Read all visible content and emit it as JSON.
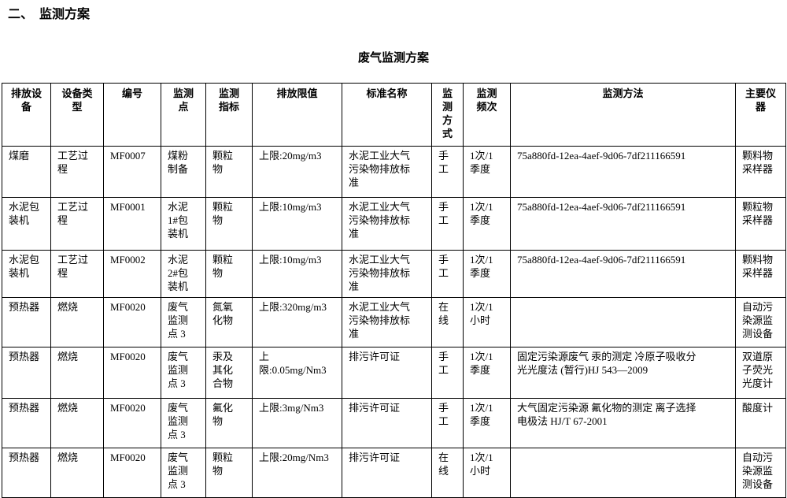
{
  "page": {
    "section_title": "二、　监测方案",
    "table_title": "废气监测方案"
  },
  "table": {
    "headers": [
      "排放设\n备",
      "设备类\n型",
      "编号",
      "监测\n点",
      "监测\n指标",
      "排放限值",
      "标准名称",
      "监\n测\n方\n式",
      "监测\n频次",
      "监测方法",
      "主要仪\n器"
    ],
    "rows": [
      [
        "煤磨",
        "工艺过\n程",
        "MF0007",
        "煤粉\n制备",
        "颗粒\n物",
        "上限:20mg/m3",
        "水泥工业大气\n污染物排放标\n准",
        "手\n工",
        "1次/1\n季度",
        "75a880fd-12ea-4aef-9d06-7df211166591",
        "颗料物\n采样器"
      ],
      [
        "水泥包\n装机",
        "工艺过\n程",
        "MF0001",
        "水泥\n1#包\n装机",
        "颗粒\n物",
        "上限:10mg/m3",
        "水泥工业大气\n污染物排放标\n准",
        "手\n工",
        "1次/1\n季度",
        "75a880fd-12ea-4aef-9d06-7df211166591",
        "颗粒物\n采样器"
      ],
      [
        "水泥包\n装机",
        "工艺过\n程",
        "MF0002",
        "水泥\n2#包\n装机",
        "颗粒\n物",
        "上限:10mg/m3",
        "水泥工业大气\n污染物排放标\n准",
        "手\n工",
        "1次/1\n季度",
        "75a880fd-12ea-4aef-9d06-7df211166591",
        "颗料物\n采样器"
      ],
      [
        "预热器",
        "燃烧",
        "MF0020",
        "废气\n监测\n点 3",
        "氮氧\n化物",
        "上限:320mg/m3",
        "水泥工业大气\n污染物排放标\n准",
        "在\n线",
        "1次/1\n小时",
        "",
        "自动污\n染源监\n测设备"
      ],
      [
        "预热器",
        "燃烧",
        "MF0020",
        "废气\n监测\n点 3",
        "汞及\n其化\n合物",
        "上\n限:0.05mg/Nm3",
        "排污许可证",
        "手\n工",
        "1次/1\n季度",
        "固定污染源废气 汞的测定 冷原子吸收分\n光光度法 (暂行)HJ 543—2009",
        "双道原\n子荧光\n光度计"
      ],
      [
        "预热器",
        "燃烧",
        "MF0020",
        "废气\n监测\n点 3",
        "氟化\n物",
        "上限:3mg/Nm3",
        "排污许可证",
        "手\n工",
        "1次/1\n季度",
        "大气固定污染源 氟化物的测定 离子选择\n电极法 HJ/T 67-2001",
        "酸度计"
      ],
      [
        "预热器",
        "燃烧",
        "MF0020",
        "废气\n监测\n点 3",
        "颗粒\n物",
        "上限:20mg/Nm3",
        "排污许可证",
        "在\n线",
        "1次/1\n小时",
        "",
        "自动污\n染源监\n测设备"
      ]
    ]
  }
}
